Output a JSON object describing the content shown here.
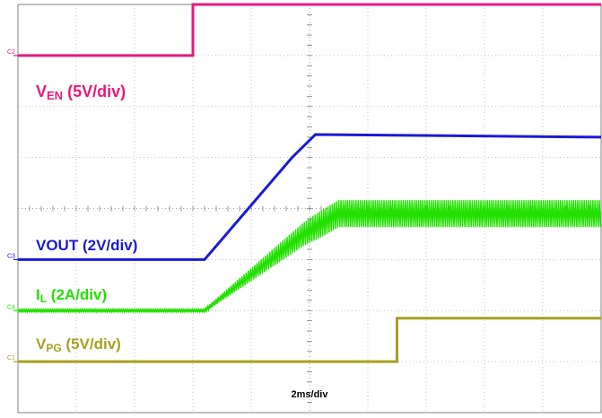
{
  "chart_data": {
    "type": "line",
    "title": "",
    "xlabel": "2ms/div",
    "ylabel": "",
    "grid": true,
    "x_divisions": 10,
    "y_divisions": 8,
    "timebase": "2ms/div",
    "series": [
      {
        "name_main": "V",
        "name_sub": "EN",
        "name_scale": " (5V/div)",
        "channel": "C2",
        "color": "#e8197d",
        "x": [
          0,
          3.0,
          3.0,
          10
        ],
        "y": [
          7.0,
          7.0,
          8.0,
          8.0
        ]
      },
      {
        "name_main": "VOUT",
        "name_sub": "",
        "name_scale": " (2V/div)",
        "channel": "C3",
        "color": "#1a1ad6",
        "x": [
          0,
          3.2,
          4.7,
          5.1,
          10
        ],
        "y": [
          3.0,
          3.0,
          5.0,
          5.45,
          5.4
        ]
      },
      {
        "name_main": "I",
        "name_sub": "L",
        "name_scale": " (2A/div)",
        "channel": "C4",
        "color": "#22e000",
        "x": [
          0,
          3.2,
          4.9,
          5.5,
          10
        ],
        "y": [
          2.0,
          2.0,
          3.5,
          3.9,
          3.9
        ],
        "ripple_after": 3.2
      },
      {
        "name_main": "V",
        "name_sub": "PG",
        "name_scale": " (5V/div)",
        "channel": "C1",
        "color": "#a8a022",
        "x": [
          0,
          6.5,
          6.5,
          10
        ],
        "y": [
          1.0,
          1.0,
          1.85,
          1.85
        ]
      }
    ]
  }
}
